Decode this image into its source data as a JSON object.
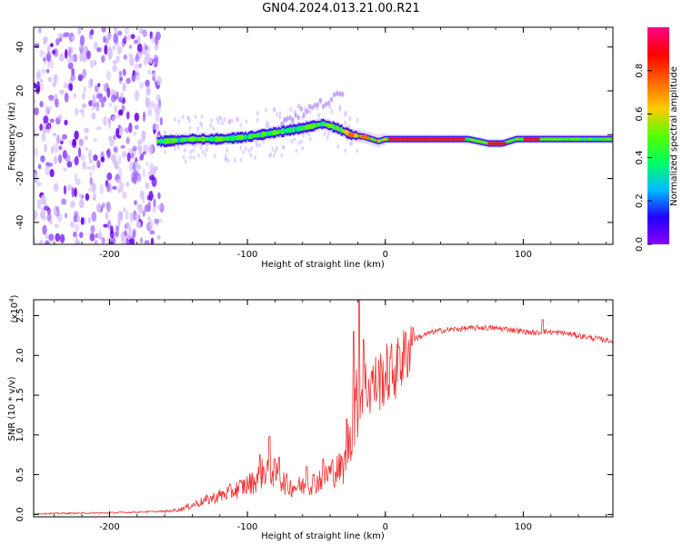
{
  "title": "GN04.2024.013.21.00.R21",
  "chart_data": [
    {
      "type": "heatmap",
      "name": "spectrogram",
      "xlabel": "Height of straight line (km)",
      "ylabel": "Frequency (Hz)",
      "xlim": [
        -255,
        165
      ],
      "ylim": [
        -50,
        49
      ],
      "xticks": [
        -200,
        -100,
        0,
        100
      ],
      "xtick_labels": [
        "-200",
        "-100",
        "0",
        "100"
      ],
      "yticks": [
        -40,
        -20,
        0,
        20,
        40
      ],
      "ytick_labels": [
        "-40",
        "-20",
        "0",
        "20",
        "40"
      ],
      "colorbar": {
        "label": "Normalized spectral amplitude",
        "range": [
          0,
          1
        ],
        "ticks": [
          0.0,
          0.2,
          0.4,
          0.6,
          0.8
        ],
        "tick_labels": [
          "0.0",
          "0.2",
          "0.4",
          "0.6",
          "0.8"
        ],
        "colors": [
          "#8800ff",
          "#2200ff",
          "#00bbff",
          "#00ff66",
          "#55ff00",
          "#ffcc00",
          "#ff6600",
          "#ff0000",
          "#ff0088"
        ]
      },
      "noise_region": [
        -255,
        -162
      ],
      "ridge": {
        "x": [
          -160,
          -140,
          -120,
          -100,
          -80,
          -60,
          -45,
          -35,
          -25,
          -15,
          -5,
          0,
          20,
          40,
          60,
          75,
          85,
          95,
          105,
          115,
          165
        ],
        "y": [
          -3,
          -2,
          -2,
          -1,
          1,
          3,
          5,
          3,
          0,
          -1,
          -3,
          -2,
          -2,
          -2,
          -2,
          -4,
          -4,
          -2,
          -2,
          -2,
          -2
        ]
      }
    },
    {
      "type": "line",
      "name": "snr",
      "xlabel": "Height of straight line (km)",
      "ylabel": "SNR (10 * v/v)",
      "scale_label": "(x10",
      "scale_exp": "4",
      "scale_close": ")",
      "xlim": [
        -255,
        165
      ],
      "ylim": [
        -0.03,
        2.7
      ],
      "xticks": [
        -200,
        -100,
        0,
        100
      ],
      "xtick_labels": [
        "-200",
        "-100",
        "0",
        "100"
      ],
      "yticks": [
        0.0,
        0.5,
        1.0,
        1.5,
        2.0,
        2.5
      ],
      "ytick_labels": [
        "0.0",
        "0.5",
        "1.0",
        "1.5",
        "2.0",
        "2.5"
      ],
      "line_color": "#ee3333",
      "envelope": {
        "x": [
          -255,
          -200,
          -160,
          -150,
          -130,
          -110,
          -95,
          -85,
          -70,
          -60,
          -50,
          -40,
          -30,
          -25,
          -20,
          -17,
          -10,
          0,
          10,
          20,
          35,
          50,
          70,
          90,
          100,
          110,
          115,
          130,
          150,
          165
        ],
        "y": [
          0.0,
          0.01,
          0.03,
          0.05,
          0.15,
          0.25,
          0.35,
          0.5,
          0.3,
          0.3,
          0.35,
          0.45,
          0.5,
          0.9,
          1.2,
          1.6,
          1.6,
          1.75,
          1.85,
          2.2,
          2.3,
          2.33,
          2.35,
          2.33,
          2.3,
          2.28,
          2.3,
          2.28,
          2.22,
          2.18
        ]
      },
      "spikes": [
        {
          "x": -91,
          "y": 0.75
        },
        {
          "x": -84,
          "y": 0.98
        },
        {
          "x": -77,
          "y": 0.72
        },
        {
          "x": -57,
          "y": 0.6
        },
        {
          "x": -45,
          "y": 0.7
        },
        {
          "x": -28,
          "y": 1.2
        },
        {
          "x": -23,
          "y": 2.3
        },
        {
          "x": -19,
          "y": 2.7
        },
        {
          "x": -16,
          "y": 2.2
        },
        {
          "x": -10,
          "y": 1.8
        },
        {
          "x": 10,
          "y": 2.1
        },
        {
          "x": 20,
          "y": 2.35
        },
        {
          "x": 114,
          "y": 2.45
        }
      ]
    }
  ]
}
